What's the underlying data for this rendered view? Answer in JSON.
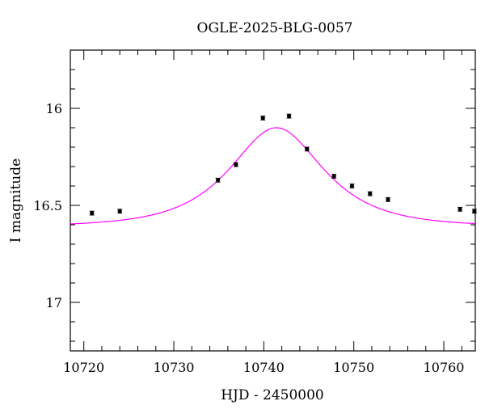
{
  "chart_data": {
    "type": "scatter",
    "title": "OGLE-2025-BLG-0057",
    "xlabel": "HJD - 2450000",
    "ylabel": "I magnitude",
    "xlim": [
      10718.5,
      10763.5
    ],
    "ylim": [
      17.25,
      15.7
    ],
    "y_inverted": true,
    "x_ticks": [
      10720,
      10730,
      10740,
      10750,
      10760
    ],
    "y_ticks": [
      16,
      16.5,
      17
    ],
    "x_tick_labels": [
      "10720",
      "10730",
      "10740",
      "10750",
      "10760"
    ],
    "y_tick_labels": [
      "16",
      "16.5",
      "17"
    ],
    "grid": false,
    "series": [
      {
        "kind": "points",
        "color": "#000000",
        "x": [
          10720.9,
          10724.0,
          10734.9,
          10736.9,
          10739.9,
          10742.8,
          10744.8,
          10747.8,
          10749.8,
          10751.8,
          10753.8,
          10761.8,
          10763.4
        ],
        "y": [
          16.54,
          16.53,
          16.37,
          16.29,
          16.05,
          16.04,
          16.21,
          16.35,
          16.4,
          16.44,
          16.47,
          16.52,
          16.53
        ],
        "yerr": [
          0.01,
          0.01,
          0.01,
          0.01,
          0.01,
          0.01,
          0.01,
          0.01,
          0.01,
          0.01,
          0.01,
          0.01,
          0.01
        ]
      },
      {
        "kind": "model",
        "color": "#ff00ff",
        "t0": 10741.4,
        "tE": 7.3,
        "u0": 0.75,
        "baseline_mag": 16.61
      }
    ]
  }
}
